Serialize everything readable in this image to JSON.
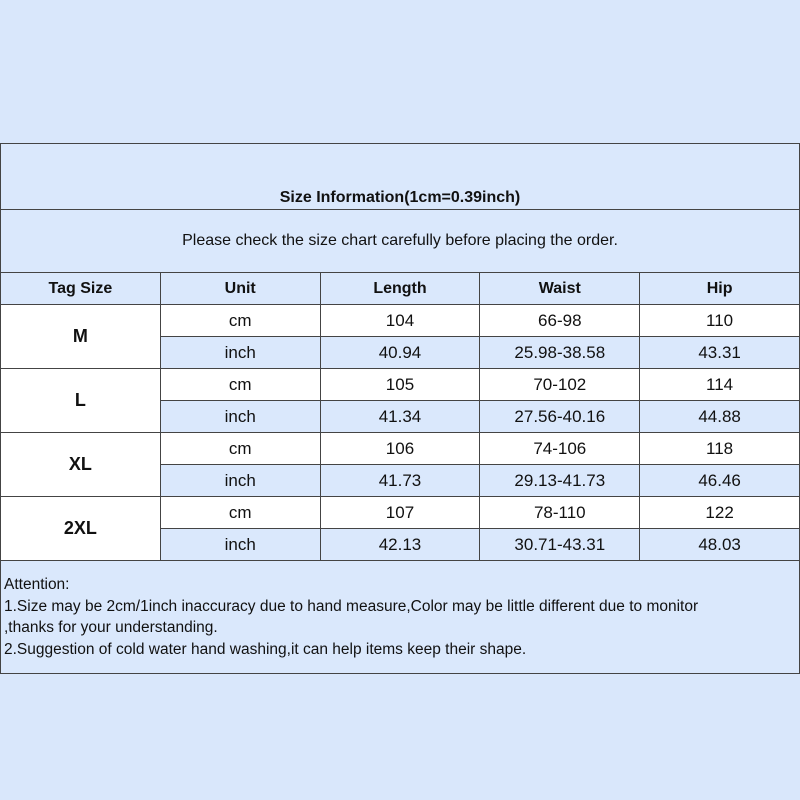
{
  "title": "Size Information(1cm=0.39inch)",
  "subtitle": "Please check the size chart carefully before placing the order.",
  "columns": [
    "Tag Size",
    "Unit",
    "Length",
    "Waist",
    "Hip"
  ],
  "sizes": [
    {
      "tag": "M",
      "cm": {
        "unit": "cm",
        "length": "104",
        "waist": "66-98",
        "hip": "110"
      },
      "inch": {
        "unit": "inch",
        "length": "40.94",
        "waist": "25.98-38.58",
        "hip": "43.31"
      }
    },
    {
      "tag": "L",
      "cm": {
        "unit": "cm",
        "length": "105",
        "waist": "70-102",
        "hip": "114"
      },
      "inch": {
        "unit": "inch",
        "length": "41.34",
        "waist": "27.56-40.16",
        "hip": "44.88"
      }
    },
    {
      "tag": "XL",
      "cm": {
        "unit": "cm",
        "length": "106",
        "waist": "74-106",
        "hip": "118"
      },
      "inch": {
        "unit": "inch",
        "length": "41.73",
        "waist": "29.13-41.73",
        "hip": "46.46"
      }
    },
    {
      "tag": "2XL",
      "cm": {
        "unit": "cm",
        "length": "107",
        "waist": "78-110",
        "hip": "122"
      },
      "inch": {
        "unit": "inch",
        "length": "42.13",
        "waist": "30.71-43.31",
        "hip": "48.03"
      }
    }
  ],
  "attention": {
    "heading": "Attention:",
    "lines": [
      "1.Size may be 2cm/1inch inaccuracy due to hand measure,Color may be little different due to monitor",
      ",thanks for your understanding.",
      "2.Suggestion of cold water hand washing,it can help items keep their shape."
    ]
  },
  "colors": {
    "background": "#d9e7fb",
    "cell_blue": "#dae8fc",
    "cell_white": "#ffffff",
    "border": "#444444"
  }
}
